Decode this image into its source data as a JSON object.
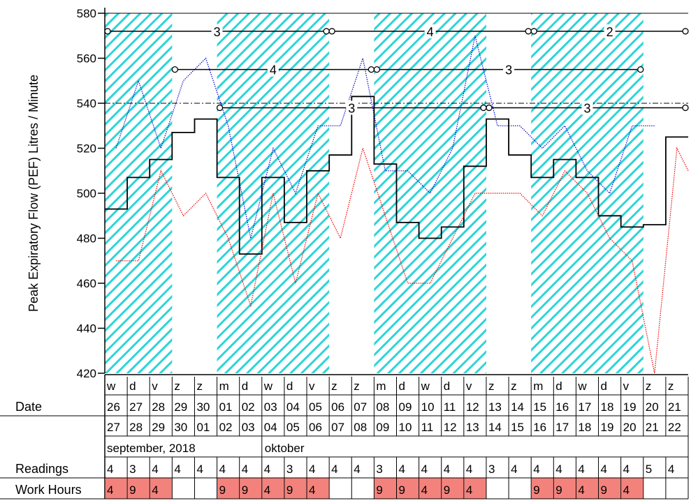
{
  "chart_data": {
    "type": "line",
    "ylabel": "Peak Expiratory Flow (PEF) Litres / Minute",
    "ylim": [
      420,
      580
    ],
    "yticks": [
      420,
      440,
      460,
      480,
      500,
      520,
      540,
      560,
      580
    ],
    "reference_line": 540,
    "weekdays": [
      "w",
      "d",
      "v",
      "z",
      "z",
      "m",
      "d",
      "w",
      "d",
      "v",
      "z",
      "z",
      "m",
      "d",
      "w",
      "d",
      "v",
      "z",
      "z",
      "m",
      "d",
      "w",
      "d",
      "v",
      "z",
      "z"
    ],
    "date_start": [
      "26",
      "27",
      "28",
      "29",
      "30",
      "01",
      "02",
      "03",
      "04",
      "05",
      "06",
      "07",
      "08",
      "09",
      "10",
      "11",
      "12",
      "13",
      "14",
      "15",
      "16",
      "17",
      "18",
      "19",
      "20",
      "21"
    ],
    "date_end": [
      "27",
      "28",
      "29",
      "30",
      "01",
      "02",
      "03",
      "04",
      "05",
      "06",
      "07",
      "08",
      "09",
      "10",
      "11",
      "12",
      "13",
      "14",
      "15",
      "16",
      "17",
      "18",
      "19",
      "20",
      "21",
      "22"
    ],
    "month_labels": [
      "september, 2018",
      "oktober"
    ],
    "readings": [
      "4",
      "3",
      "4",
      "4",
      "4",
      "4",
      "4",
      "4",
      "3",
      "4",
      "4",
      "4",
      "3",
      "4",
      "4",
      "4",
      "4",
      "3",
      "4",
      "4",
      "4",
      "4",
      "4",
      "4",
      "5",
      "4"
    ],
    "work_hours": [
      "4",
      "9",
      "4",
      "",
      "",
      "9",
      "9",
      "4",
      "9",
      "4",
      "",
      "",
      "9",
      "9",
      "4",
      "9",
      "4",
      "",
      "",
      "9",
      "9",
      "4",
      "9",
      "4",
      "",
      ""
    ],
    "work_day_periods": [
      [
        0,
        3
      ],
      [
        5,
        10
      ],
      [
        12,
        17
      ],
      [
        19,
        24
      ]
    ],
    "row_labels": {
      "date": "Date",
      "readings": "Readings",
      "work_hours": "Work Hours"
    },
    "series": [
      {
        "role": "max",
        "color": "#0000cc",
        "points": [
          [
            0.5,
            520
          ],
          [
            1.5,
            550
          ],
          [
            2.5,
            520
          ],
          [
            3.5,
            550
          ],
          [
            4.5,
            560
          ],
          [
            5.5,
            530
          ],
          [
            6.5,
            480
          ],
          [
            7.5,
            520
          ],
          [
            8.5,
            500
          ],
          [
            9.5,
            530
          ],
          [
            10.5,
            530
          ],
          [
            11.5,
            560
          ],
          [
            12.5,
            510
          ],
          [
            13.5,
            510
          ],
          [
            14.5,
            500
          ],
          [
            15.5,
            520
          ],
          [
            16.5,
            570
          ],
          [
            17.5,
            530
          ],
          [
            18.5,
            530
          ],
          [
            19.5,
            520
          ],
          [
            20.5,
            530
          ],
          [
            21.5,
            510
          ],
          [
            22.5,
            500
          ],
          [
            23.5,
            530
          ],
          [
            24.5,
            530
          ]
        ]
      },
      {
        "role": "mean",
        "color": "#000000",
        "points": [
          [
            0,
            493
          ],
          [
            1,
            493
          ],
          [
            1,
            507
          ],
          [
            2,
            507
          ],
          [
            2,
            515
          ],
          [
            3,
            515
          ],
          [
            3,
            527
          ],
          [
            4,
            527
          ],
          [
            4,
            533
          ],
          [
            5,
            533
          ],
          [
            5,
            507
          ],
          [
            6,
            507
          ],
          [
            6,
            473
          ],
          [
            7,
            473
          ],
          [
            7,
            507
          ],
          [
            8,
            507
          ],
          [
            8,
            487
          ],
          [
            9,
            487
          ],
          [
            9,
            510
          ],
          [
            10,
            510
          ],
          [
            10,
            517
          ],
          [
            11,
            517
          ],
          [
            11,
            543
          ],
          [
            12,
            543
          ],
          [
            12,
            513
          ],
          [
            13,
            513
          ],
          [
            13,
            487
          ],
          [
            14,
            487
          ],
          [
            14,
            480
          ],
          [
            15,
            480
          ],
          [
            15,
            485
          ],
          [
            16,
            485
          ],
          [
            16,
            512
          ],
          [
            17,
            512
          ],
          [
            17,
            533
          ],
          [
            18,
            533
          ],
          [
            18,
            517
          ],
          [
            19,
            517
          ],
          [
            19,
            507
          ],
          [
            20,
            507
          ],
          [
            20,
            515
          ],
          [
            21,
            515
          ],
          [
            21,
            507
          ],
          [
            22,
            507
          ],
          [
            22,
            490
          ],
          [
            23,
            490
          ],
          [
            23,
            485
          ],
          [
            24,
            485
          ],
          [
            24,
            486
          ],
          [
            25,
            486
          ],
          [
            25,
            525
          ],
          [
            26,
            525
          ]
        ]
      },
      {
        "role": "min",
        "color": "#ee0000",
        "points": [
          [
            0.5,
            470
          ],
          [
            1.5,
            470
          ],
          [
            2.5,
            510
          ],
          [
            3.5,
            490
          ],
          [
            4.5,
            500
          ],
          [
            5.5,
            480
          ],
          [
            6.5,
            450
          ],
          [
            7.5,
            500
          ],
          [
            8.5,
            460
          ],
          [
            9.5,
            500
          ],
          [
            10.5,
            480
          ],
          [
            11.5,
            520
          ],
          [
            12.5,
            490
          ],
          [
            13.5,
            460
          ],
          [
            14.5,
            460
          ],
          [
            15.5,
            480
          ],
          [
            16.5,
            500
          ],
          [
            17.5,
            500
          ],
          [
            18.5,
            500
          ],
          [
            19.5,
            490
          ],
          [
            20.5,
            510
          ],
          [
            21.5,
            500
          ],
          [
            22.5,
            480
          ],
          [
            23.5,
            470
          ],
          [
            24.5,
            420
          ],
          [
            25.5,
            520
          ],
          [
            26,
            510
          ]
        ]
      }
    ],
    "period_bars": [
      {
        "y": 572,
        "from": 0,
        "to": 10,
        "label": "3"
      },
      {
        "y": 572,
        "from": 10,
        "to": 19,
        "label": "4"
      },
      {
        "y": 572,
        "from": 19,
        "to": 26,
        "label": "2"
      },
      {
        "y": 555,
        "from": 3,
        "to": 12,
        "label": "4"
      },
      {
        "y": 555,
        "from": 12,
        "to": 24,
        "label": "3"
      },
      {
        "y": 538,
        "from": 5,
        "to": 17,
        "label": "3"
      },
      {
        "y": 538,
        "from": 17,
        "to": 26,
        "label": "3"
      }
    ]
  }
}
